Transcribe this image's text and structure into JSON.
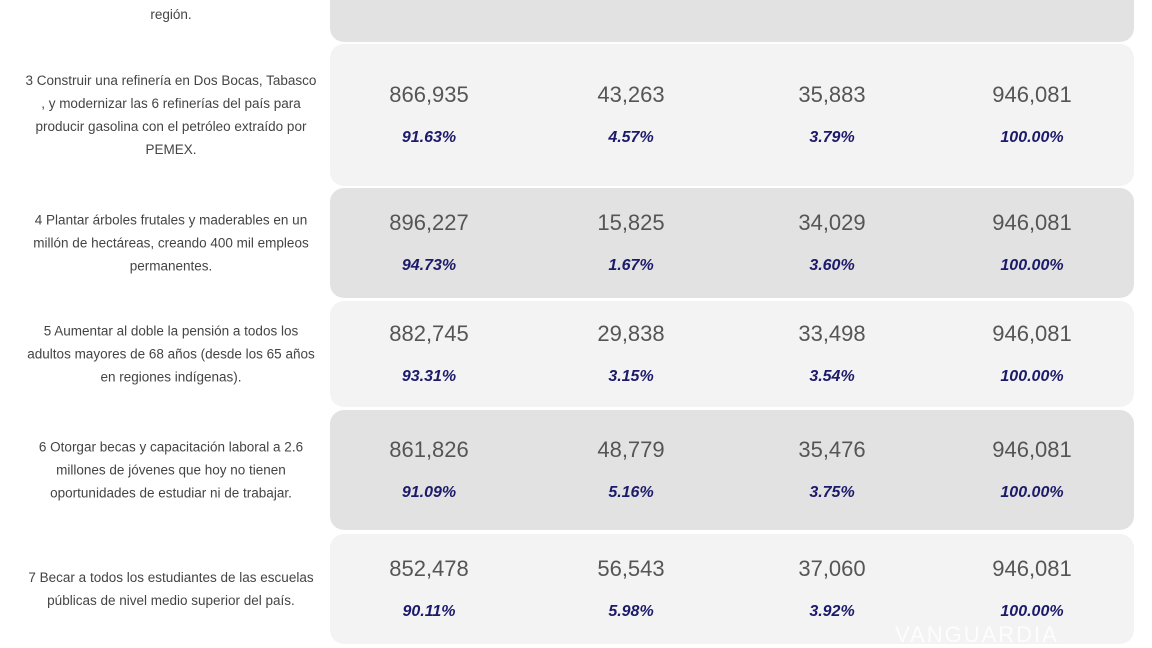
{
  "rows": [
    {
      "desc": "región.",
      "values": [],
      "percents": [],
      "shade": "dark"
    },
    {
      "desc": "3 Construir una refinería en Dos Bocas, Tabasco , y modernizar las 6 refinerías del país para producir gasolina con el petróleo extraído por PEMEX.",
      "values": [
        "866,935",
        "43,263",
        "35,883",
        "946,081"
      ],
      "percents": [
        "91.63%",
        "4.57%",
        "3.79%",
        "100.00%"
      ],
      "shade": "light"
    },
    {
      "desc": "4 Plantar árboles frutales y maderables en un millón de hectáreas, creando 400 mil empleos permanentes.",
      "values": [
        "896,227",
        "15,825",
        "34,029",
        "946,081"
      ],
      "percents": [
        "94.73%",
        "1.67%",
        "3.60%",
        "100.00%"
      ],
      "shade": "dark"
    },
    {
      "desc": "5 Aumentar al doble la pensión a todos los adultos mayores de 68 años (desde los 65 años en regiones indígenas).",
      "values": [
        "882,745",
        "29,838",
        "33,498",
        "946,081"
      ],
      "percents": [
        "93.31%",
        "3.15%",
        "3.54%",
        "100.00%"
      ],
      "shade": "light"
    },
    {
      "desc": "6 Otorgar becas y capacitación laboral a 2.6 millones de jóvenes que hoy no tienen oportunidades de estudiar ni de trabajar.",
      "values": [
        "861,826",
        "48,779",
        "35,476",
        "946,081"
      ],
      "percents": [
        "91.09%",
        "5.16%",
        "3.75%",
        "100.00%"
      ],
      "shade": "dark"
    },
    {
      "desc": "7 Becar a todos los estudiantes de las escuelas públicas de nivel medio superior del país.",
      "values": [
        "852,478",
        "56,543",
        "37,060",
        "946,081"
      ],
      "percents": [
        "90.11%",
        "5.98%",
        "3.92%",
        "100.00%"
      ],
      "shade": "light"
    }
  ],
  "watermark": "VANGUARDIA"
}
